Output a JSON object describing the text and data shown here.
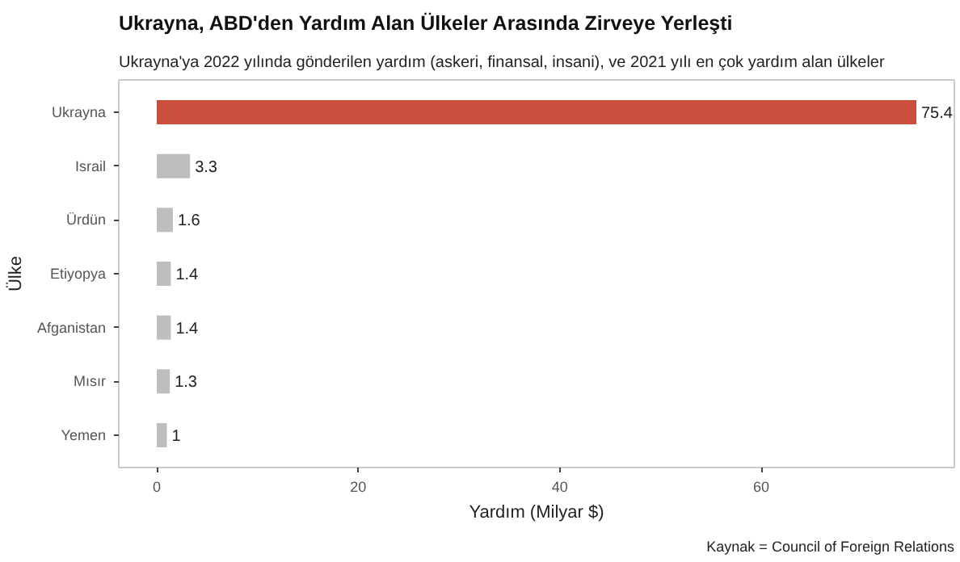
{
  "chart_data": {
    "type": "bar",
    "orientation": "horizontal",
    "title": "Ukrayna, ABD'den Yardım Alan Ülkeler Arasında Zirveye Yerleşti",
    "subtitle": "Ukrayna'ya 2022 yılında gönderilen yardım (askeri, finansal, insani), ve 2021 yılı en çok yardım alan ülkeler",
    "xlabel": "Yardım (Milyar $)",
    "ylabel": "Ülke",
    "categories": [
      "Ukrayna",
      "Israil",
      "Ürdün",
      "Etiyopya",
      "Afganistan",
      "Mısır",
      "Yemen"
    ],
    "values": [
      75.4,
      3.3,
      1.6,
      1.4,
      1.4,
      1.3,
      1
    ],
    "colors": [
      "#cc4e3c",
      "#bebebe",
      "#bebebe",
      "#bebebe",
      "#bebebe",
      "#bebebe",
      "#bebebe"
    ],
    "value_labels": [
      "75.4",
      "3.3",
      "1.6",
      "1.4",
      "1.4",
      "1.3",
      "1"
    ],
    "xlim": [
      -3.77,
      79.17
    ],
    "xticks": [
      0,
      20,
      40,
      60
    ],
    "grid": false,
    "annotations": [
      "Kaynak = Council of Foreign Relations"
    ]
  }
}
